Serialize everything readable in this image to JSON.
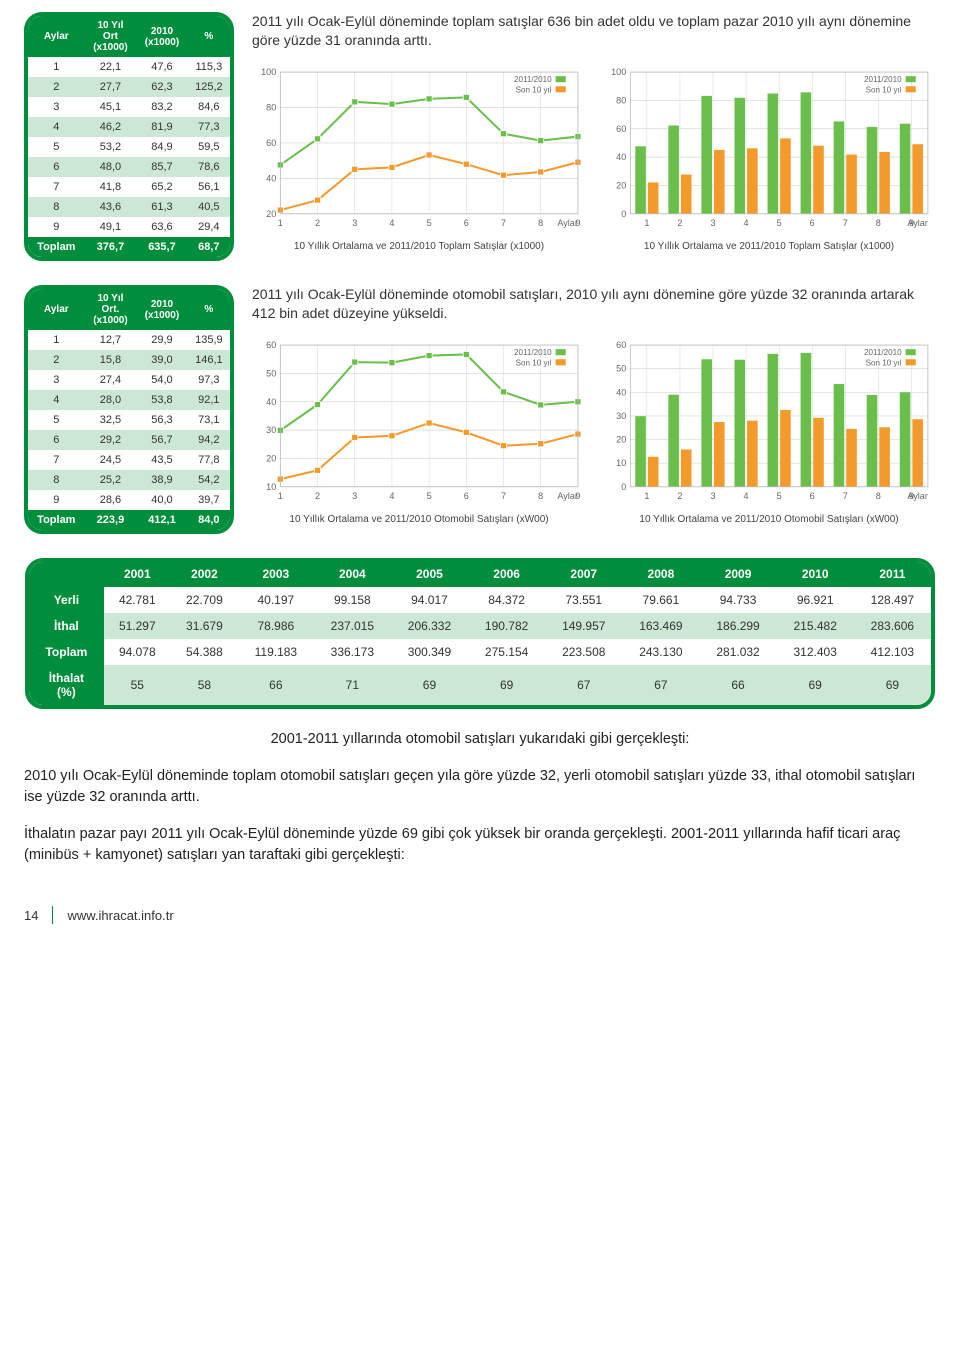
{
  "colors": {
    "brand_green": "#008e3c",
    "series_green": "#6abf4b",
    "series_orange": "#f39a2b",
    "grid_light": "#d6d6d6",
    "grid_med": "#bbbbbb",
    "axis_text": "#666"
  },
  "table1": {
    "headers": [
      "Aylar",
      "10 Yıl\nOrt\n(x1000)",
      "2010\n(x1000)",
      "%"
    ],
    "rows": [
      [
        "1",
        "22,1",
        "47,6",
        "115,3"
      ],
      [
        "2",
        "27,7",
        "62,3",
        "125,2"
      ],
      [
        "3",
        "45,1",
        "83,2",
        "84,6"
      ],
      [
        "4",
        "46,2",
        "81,9",
        "77,3"
      ],
      [
        "5",
        "53,2",
        "84,9",
        "59,5"
      ],
      [
        "6",
        "48,0",
        "85,7",
        "78,6"
      ],
      [
        "7",
        "41,8",
        "65,2",
        "56,1"
      ],
      [
        "8",
        "43,6",
        "61,3",
        "40,5"
      ],
      [
        "9",
        "49,1",
        "63,6",
        "29,4"
      ]
    ],
    "total": [
      "Toplam",
      "376,7",
      "635,7",
      "68,7"
    ]
  },
  "desc1": "2011 yılı Ocak-Eylül döneminde toplam satışlar 636 bin adet oldu ve toplam pazar 2010 yılı aynı dönemine göre yüzde 31 oranında arttı.",
  "chart1L": {
    "type": "line",
    "y_ticks": [
      20,
      40,
      60,
      80,
      100
    ],
    "ylim": [
      20,
      100
    ],
    "x_labels": [
      "1",
      "2",
      "3",
      "4",
      "5",
      "6",
      "7",
      "8",
      "9"
    ],
    "x_axis_label": "Aylar",
    "legend": [
      "2011/2010",
      "Son 10 yıl"
    ],
    "series_a": [
      47.6,
      62.3,
      83.2,
      81.9,
      84.9,
      85.7,
      65.2,
      61.3,
      63.6
    ],
    "series_b": [
      22.1,
      27.7,
      45.1,
      46.2,
      53.2,
      48.0,
      41.8,
      43.6,
      49.1
    ],
    "caption": "10 Yıllık Ortalama ve 2011/2010 Toplam Satışlar (x1000)"
  },
  "chart1R": {
    "type": "bar",
    "y_ticks": [
      0,
      20,
      40,
      60,
      80,
      100
    ],
    "ylim": [
      0,
      100
    ],
    "x_labels": [
      "1",
      "2",
      "3",
      "4",
      "5",
      "6",
      "7",
      "8",
      "9"
    ],
    "x_axis_label": "Aylar",
    "legend": [
      "2011/2010",
      "Son 10 yıl"
    ],
    "series_a": [
      47.6,
      62.3,
      83.2,
      81.9,
      84.9,
      85.7,
      65.2,
      61.3,
      63.6
    ],
    "series_b": [
      22.1,
      27.7,
      45.1,
      46.2,
      53.2,
      48.0,
      41.8,
      43.6,
      49.1
    ],
    "caption": "10 Yıllık Ortalama ve 2011/2010 Toplam Satışlar (x1000)"
  },
  "table2": {
    "headers": [
      "Aylar",
      "10 Yıl\nOrt.\n(x1000)",
      "2010\n(x1000)",
      "%"
    ],
    "rows": [
      [
        "1",
        "12,7",
        "29,9",
        "135,9"
      ],
      [
        "2",
        "15,8",
        "39,0",
        "146,1"
      ],
      [
        "3",
        "27,4",
        "54,0",
        "97,3"
      ],
      [
        "4",
        "28,0",
        "53,8",
        "92,1"
      ],
      [
        "5",
        "32,5",
        "56,3",
        "73,1"
      ],
      [
        "6",
        "29,2",
        "56,7",
        "94,2"
      ],
      [
        "7",
        "24,5",
        "43,5",
        "77,8"
      ],
      [
        "8",
        "25,2",
        "38,9",
        "54,2"
      ],
      [
        "9",
        "28,6",
        "40,0",
        "39,7"
      ]
    ],
    "total": [
      "Toplam",
      "223,9",
      "412,1",
      "84,0"
    ]
  },
  "desc2": "2011 yılı Ocak-Eylül döneminde otomobil satışları, 2010 yılı aynı dönemine göre yüzde 32 oranında artarak 412 bin adet düzeyine yükseldi.",
  "chart2L": {
    "type": "line",
    "y_ticks": [
      10,
      20,
      30,
      40,
      50,
      60
    ],
    "ylim": [
      10,
      60
    ],
    "x_labels": [
      "1",
      "2",
      "3",
      "4",
      "5",
      "6",
      "7",
      "8",
      "9"
    ],
    "x_axis_label": "Aylar",
    "legend": [
      "2011/2010",
      "Son 10 yıl"
    ],
    "series_a": [
      29.9,
      39.0,
      54.0,
      53.8,
      56.3,
      56.7,
      43.5,
      38.9,
      40.0
    ],
    "series_b": [
      12.7,
      15.8,
      27.4,
      28.0,
      32.5,
      29.2,
      24.5,
      25.2,
      28.6
    ],
    "caption": "10 Yıllık Ortalama ve 2011/2010 Otomobil Satışları (xW00)"
  },
  "chart2R": {
    "type": "bar",
    "y_ticks": [
      0,
      10,
      20,
      30,
      40,
      50,
      60
    ],
    "ylim": [
      0,
      60
    ],
    "x_labels": [
      "1",
      "2",
      "3",
      "4",
      "5",
      "6",
      "7",
      "8",
      "9"
    ],
    "x_axis_label": "Aylar",
    "legend": [
      "2011/2010",
      "Son 10 yıl"
    ],
    "series_a": [
      29.9,
      39.0,
      54.0,
      53.8,
      56.3,
      56.7,
      43.5,
      38.9,
      40.0
    ],
    "series_b": [
      12.7,
      15.8,
      27.4,
      28.0,
      32.5,
      29.2,
      24.5,
      25.2,
      28.6
    ],
    "caption": "10 Yıllık Ortalama ve 2011/2010 Otomobil Satışları (xW00)"
  },
  "yearly_table": {
    "headers": [
      "",
      "2001",
      "2002",
      "2003",
      "2004",
      "2005",
      "2006",
      "2007",
      "2008",
      "2009",
      "2010",
      "2011"
    ],
    "rows": [
      [
        "Yerli",
        "42.781",
        "22.709",
        "40.197",
        "99.158",
        "94.017",
        "84.372",
        "73.551",
        "79.661",
        "94.733",
        "96.921",
        "128.497"
      ],
      [
        "İthal",
        "51.297",
        "31.679",
        "78.986",
        "237.015",
        "206.332",
        "190.782",
        "149.957",
        "163.469",
        "186.299",
        "215.482",
        "283.606"
      ],
      [
        "Toplam",
        "94.078",
        "54.388",
        "119.183",
        "336.173",
        "300.349",
        "275.154",
        "223.508",
        "243.130",
        "281.032",
        "312.403",
        "412.103"
      ],
      [
        "İthalat\n(%)",
        "55",
        "58",
        "66",
        "71",
        "69",
        "69",
        "67",
        "67",
        "66",
        "69",
        "69"
      ]
    ]
  },
  "p_center": "2001-2011 yıllarında otomobil satışları yukarıdaki gibi gerçekleşti:",
  "p1": "2010 yılı Ocak-Eylül döneminde toplam otomobil satışları geçen yıla göre yüzde 32, yerli otomobil satışları yüzde 33, ithal otomobil satışları ise yüzde 32 oranında arttı.",
  "p2": "İthalatın pazar payı 2011 yılı Ocak-Eylül döneminde yüzde 69 gibi çok yüksek bir oranda gerçekleşti. 2001-2011 yıllarında hafif ticari araç (minibüs + kamyonet) satışları yan taraftaki gibi gerçekleşti:",
  "footer": {
    "page": "14",
    "url": "www.ihracat.info.tr"
  }
}
